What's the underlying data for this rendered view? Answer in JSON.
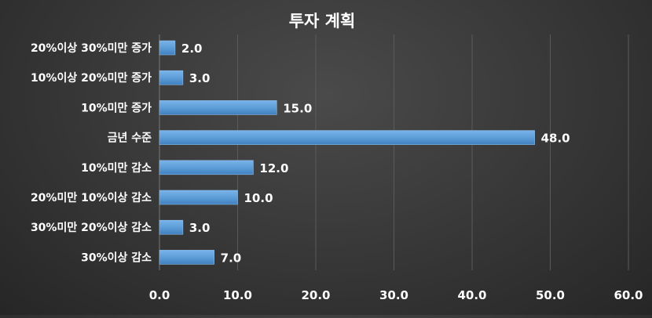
{
  "chart_data": {
    "type": "bar",
    "orientation": "horizontal",
    "title": "투자 계획",
    "categories": [
      "20%이상 30%미만 증가",
      "10%이상 20%미만 증가",
      "10%미만 증가",
      "금년 수준",
      "10%미만 감소",
      "20%미만 10%이상 감소",
      "30%미만 20%이상 감소",
      "30%이상 감소"
    ],
    "values": [
      2.0,
      3.0,
      15.0,
      48.0,
      12.0,
      10.0,
      3.0,
      7.0
    ],
    "data_labels": [
      "2.0",
      "3.0",
      "15.0",
      "48.0",
      "12.0",
      "10.0",
      "3.0",
      "7.0"
    ],
    "x_ticks": [
      "0.0",
      "10.0",
      "20.0",
      "30.0",
      "40.0",
      "50.0",
      "60.0"
    ],
    "xlim": [
      0,
      60
    ],
    "grid": true,
    "legend": "none",
    "colors": {
      "bar": "#5b9bd5",
      "bar_edge": "#8fbde8",
      "text": "#ffffff",
      "grid": "#5a5a5a"
    }
  }
}
